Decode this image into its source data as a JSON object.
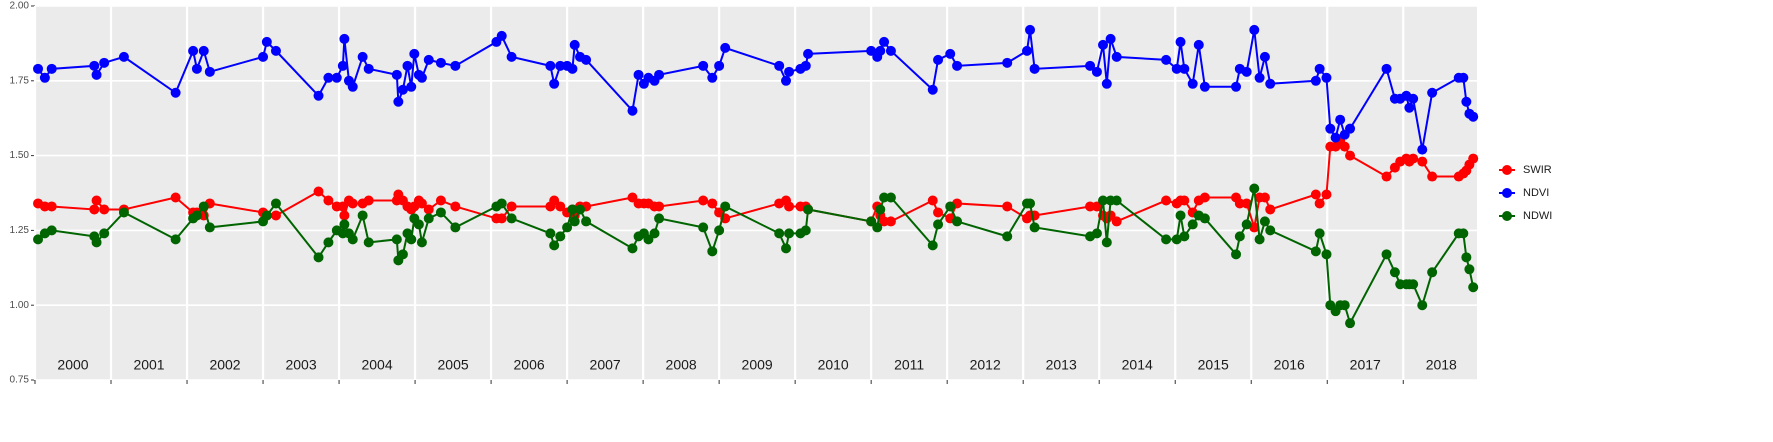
{
  "chart_data": {
    "type": "line",
    "x": [
      2000.04,
      2000.13,
      2000.22,
      2000.78,
      2000.81,
      2000.91,
      2001.17,
      2001.85,
      2002.08,
      2002.13,
      2002.22,
      2002.3,
      2003.0,
      2003.05,
      2003.17,
      2003.73,
      2003.86,
      2003.97,
      2004.05,
      2004.07,
      2004.13,
      2004.18,
      2004.31,
      2004.39,
      2004.76,
      2004.78,
      2004.84,
      2004.9,
      2004.95,
      2004.99,
      2005.05,
      2005.09,
      2005.18,
      2005.34,
      2005.53,
      2006.07,
      2006.14,
      2006.27,
      2006.78,
      2006.83,
      2006.91,
      2007.0,
      2007.07,
      2007.1,
      2007.17,
      2007.25,
      2007.86,
      2007.94,
      2008.01,
      2008.07,
      2008.15,
      2008.21,
      2008.79,
      2008.91,
      2009.0,
      2009.08,
      2009.79,
      2009.88,
      2009.92,
      2010.07,
      2010.14,
      2010.17,
      2011.0,
      2011.08,
      2011.12,
      2011.17,
      2011.26,
      2011.81,
      2011.88,
      2012.04,
      2012.13,
      2012.79,
      2013.05,
      2013.09,
      2013.15,
      2013.88,
      2013.97,
      2014.05,
      2014.1,
      2014.15,
      2014.23,
      2014.88,
      2015.02,
      2015.07,
      2015.12,
      2015.23,
      2015.31,
      2015.39,
      2015.8,
      2015.85,
      2015.94,
      2016.04,
      2016.11,
      2016.18,
      2016.25,
      2016.85,
      2016.9,
      2016.99,
      2017.04,
      2017.11,
      2017.17,
      2017.23,
      2017.3,
      2017.78,
      2017.89,
      2017.96,
      2018.04,
      2018.08,
      2018.13,
      2018.25,
      2018.38,
      2018.73,
      2018.79,
      2018.83,
      2018.87,
      2018.92
    ],
    "series": [
      {
        "name": "SWIR",
        "color": "#ff0000",
        "values": [
          1.34,
          1.33,
          1.33,
          1.32,
          1.35,
          1.32,
          1.32,
          1.36,
          1.31,
          1.31,
          1.3,
          1.34,
          1.31,
          1.3,
          1.3,
          1.38,
          1.35,
          1.33,
          1.33,
          1.3,
          1.35,
          1.34,
          1.34,
          1.35,
          1.35,
          1.37,
          1.35,
          1.33,
          1.32,
          1.33,
          1.35,
          1.34,
          1.32,
          1.35,
          1.33,
          1.29,
          1.29,
          1.33,
          1.33,
          1.35,
          1.33,
          1.31,
          1.32,
          1.3,
          1.33,
          1.33,
          1.36,
          1.34,
          1.34,
          1.34,
          1.33,
          1.33,
          1.35,
          1.34,
          1.31,
          1.29,
          1.34,
          1.35,
          1.33,
          1.33,
          1.33,
          1.32,
          1.28,
          1.33,
          1.3,
          1.28,
          1.28,
          1.35,
          1.31,
          1.29,
          1.34,
          1.33,
          1.29,
          1.3,
          1.3,
          1.33,
          1.33,
          1.3,
          1.29,
          1.3,
          1.28,
          1.35,
          1.34,
          1.35,
          1.35,
          1.31,
          1.35,
          1.36,
          1.36,
          1.34,
          1.34,
          1.26,
          1.36,
          1.36,
          1.32,
          1.37,
          1.34,
          1.37,
          1.53,
          1.53,
          1.55,
          1.53,
          1.5,
          1.43,
          1.46,
          1.48,
          1.49,
          1.48,
          1.49,
          1.48,
          1.43,
          1.43,
          1.44,
          1.45,
          1.47,
          1.49
        ]
      },
      {
        "name": "NDVI",
        "color": "#0000ff",
        "values": [
          1.79,
          1.76,
          1.79,
          1.8,
          1.77,
          1.81,
          1.83,
          1.71,
          1.85,
          1.79,
          1.85,
          1.78,
          1.83,
          1.88,
          1.85,
          1.7,
          1.76,
          1.76,
          1.8,
          1.89,
          1.75,
          1.73,
          1.83,
          1.79,
          1.77,
          1.68,
          1.72,
          1.8,
          1.73,
          1.84,
          1.77,
          1.76,
          1.82,
          1.81,
          1.8,
          1.88,
          1.9,
          1.83,
          1.8,
          1.74,
          1.8,
          1.8,
          1.79,
          1.87,
          1.83,
          1.82,
          1.65,
          1.77,
          1.74,
          1.76,
          1.75,
          1.77,
          1.8,
          1.76,
          1.8,
          1.86,
          1.8,
          1.75,
          1.78,
          1.79,
          1.8,
          1.84,
          1.85,
          1.83,
          1.85,
          1.88,
          1.85,
          1.72,
          1.82,
          1.84,
          1.8,
          1.81,
          1.85,
          1.92,
          1.79,
          1.8,
          1.78,
          1.87,
          1.74,
          1.89,
          1.83,
          1.82,
          1.79,
          1.88,
          1.79,
          1.74,
          1.87,
          1.73,
          1.73,
          1.79,
          1.78,
          1.92,
          1.76,
          1.83,
          1.74,
          1.75,
          1.79,
          1.76,
          1.59,
          1.56,
          1.62,
          1.57,
          1.59,
          1.79,
          1.69,
          1.69,
          1.7,
          1.66,
          1.69,
          1.52,
          1.71,
          1.76,
          1.76,
          1.68,
          1.64,
          1.63
        ]
      },
      {
        "name": "NDWI",
        "color": "#006400",
        "values": [
          1.22,
          1.24,
          1.25,
          1.23,
          1.21,
          1.24,
          1.31,
          1.22,
          1.29,
          1.3,
          1.33,
          1.26,
          1.28,
          1.3,
          1.34,
          1.16,
          1.21,
          1.25,
          1.24,
          1.27,
          1.24,
          1.22,
          1.3,
          1.21,
          1.22,
          1.15,
          1.17,
          1.24,
          1.22,
          1.29,
          1.27,
          1.21,
          1.29,
          1.31,
          1.26,
          1.33,
          1.34,
          1.29,
          1.24,
          1.2,
          1.23,
          1.26,
          1.32,
          1.28,
          1.32,
          1.28,
          1.19,
          1.23,
          1.24,
          1.22,
          1.24,
          1.29,
          1.26,
          1.18,
          1.25,
          1.33,
          1.24,
          1.19,
          1.24,
          1.24,
          1.25,
          1.32,
          1.28,
          1.26,
          1.32,
          1.36,
          1.36,
          1.2,
          1.27,
          1.33,
          1.28,
          1.23,
          1.34,
          1.34,
          1.26,
          1.23,
          1.24,
          1.35,
          1.21,
          1.35,
          1.35,
          1.22,
          1.22,
          1.3,
          1.23,
          1.27,
          1.3,
          1.29,
          1.17,
          1.23,
          1.27,
          1.39,
          1.22,
          1.28,
          1.25,
          1.18,
          1.24,
          1.17,
          1.0,
          0.98,
          1.0,
          1.0,
          0.94,
          1.17,
          1.11,
          1.07,
          1.07,
          1.07,
          1.07,
          1.0,
          1.11,
          1.24,
          1.24,
          1.16,
          1.12,
          1.06
        ]
      }
    ],
    "xlim": [
      2000,
      2018.97
    ],
    "xticks": [
      2000,
      2001,
      2002,
      2003,
      2004,
      2005,
      2006,
      2007,
      2008,
      2009,
      2010,
      2011,
      2012,
      2013,
      2014,
      2015,
      2016,
      2017,
      2018
    ],
    "ylim": [
      0.75,
      2.0
    ],
    "yticks": [
      {
        "value": 0.75,
        "label": "0.75"
      },
      {
        "value": 1.0,
        "label": "1.00"
      },
      {
        "value": 1.25,
        "label": "1.25"
      },
      {
        "value": 1.5,
        "label": "1.50"
      },
      {
        "value": 1.75,
        "label": "1.75"
      },
      {
        "value": 2.0,
        "label": "2.00"
      }
    ],
    "grid": true,
    "legend": "right"
  }
}
